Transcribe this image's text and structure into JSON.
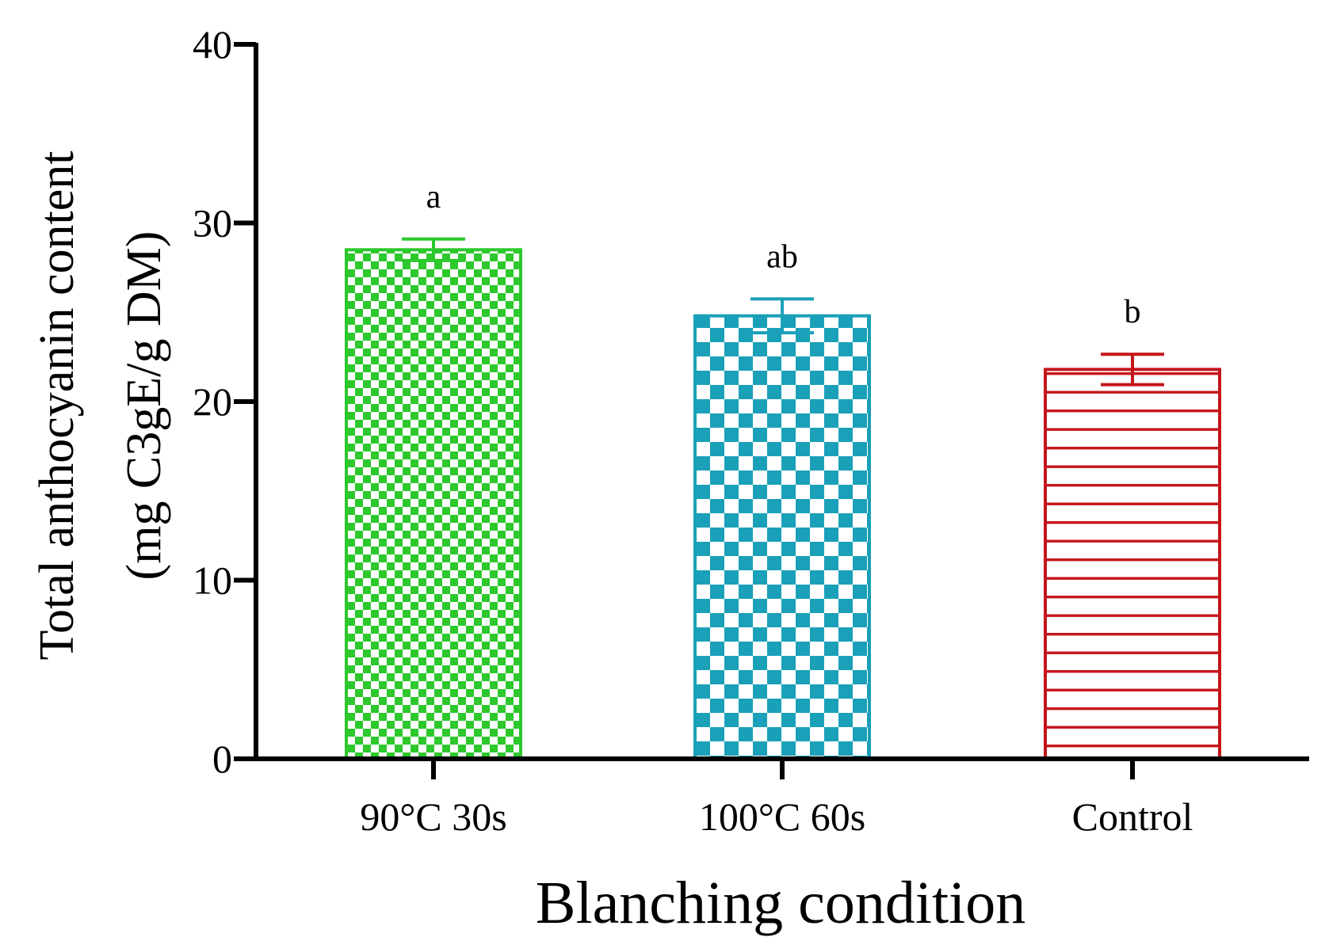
{
  "chart_data": {
    "type": "bar",
    "title": "",
    "categories": [
      "90°C 30s",
      "100°C 60s",
      "Control"
    ],
    "values": [
      28.5,
      24.8,
      21.8
    ],
    "errors": [
      0.6,
      0.95,
      0.85
    ],
    "significance_letters": [
      "a",
      "ab",
      "b"
    ],
    "bar_colors": [
      "#2cc82c",
      "#1aa0b8",
      "#c4161c"
    ],
    "bar_patterns": [
      "fine-checker",
      "coarse-checker",
      "horizontal-lines"
    ],
    "xlabel": "Blanching condition",
    "ylabel_line1": "Total anthocyanin content",
    "ylabel_line2": "(mg C3gE/g DM)",
    "ylim": [
      0,
      40
    ],
    "yticks": [
      0,
      10,
      20,
      30,
      40
    ],
    "ytick_labels": [
      "0",
      "10",
      "20",
      "30",
      "40"
    ],
    "grid": false
  }
}
